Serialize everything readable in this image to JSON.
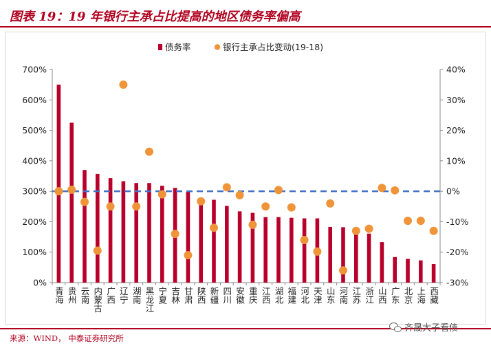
{
  "header": {
    "title": "图表 19：19 年银行主承占比提高的地区债务率偏高"
  },
  "footer": {
    "source": "来源：WIND，  中泰证券研究所",
    "watermark": "齐晟大子看债",
    "watermark_icon": "wechat-icon"
  },
  "chart_data": {
    "type": "bar",
    "title": "",
    "legend": {
      "placement": "top",
      "entries": [
        "债务率",
        "银行主承占比变动(19-18)"
      ]
    },
    "categories": [
      "青海",
      "贵州",
      "云南",
      "内蒙古",
      "广西",
      "辽宁",
      "湖南",
      "黑龙江",
      "宁夏",
      "吉林",
      "甘肃",
      "陕西",
      "新疆",
      "四川",
      "安徽",
      "重庆",
      "江西",
      "湖北",
      "福建",
      "河北",
      "天津",
      "山东",
      "河南",
      "江苏",
      "浙江",
      "山西",
      "广东",
      "北京",
      "上海",
      "西藏"
    ],
    "series": [
      {
        "name": "债务率",
        "kind": "bar",
        "axis": "left",
        "color": "#b8002a",
        "values": [
          650,
          525,
          370,
          357,
          343,
          333,
          327,
          327,
          318,
          311,
          298,
          268,
          272,
          252,
          234,
          229,
          215,
          215,
          213,
          211,
          211,
          183,
          182,
          163,
          161,
          133,
          84,
          78,
          73,
          61
        ]
      },
      {
        "name": "银行主承占比变动(19-18)",
        "kind": "scatter",
        "axis": "right",
        "color": "#f0943a",
        "values": [
          0.0,
          0.5,
          -3.5,
          -19.5,
          -5.0,
          35.0,
          -5.0,
          13.0,
          -1.0,
          -14.0,
          -21.0,
          -3.3,
          -12.0,
          1.3,
          -1.3,
          -11.0,
          -5.0,
          0.4,
          -5.3,
          -16.0,
          -19.8,
          -4.0,
          -26.0,
          -13.0,
          -12.3,
          1.1,
          0.3,
          -9.7,
          -9.7,
          -13.0
        ]
      }
    ],
    "yaxis_left": {
      "min": 0,
      "max": 700,
      "step": 100,
      "ticks": [
        "0%",
        "100%",
        "200%",
        "300%",
        "400%",
        "500%",
        "600%",
        "700%"
      ]
    },
    "yaxis_right": {
      "min": -30,
      "max": 40,
      "step": 10,
      "ticks": [
        "-30%",
        "-20%",
        "-10%",
        "0%",
        "10%",
        "20%",
        "30%",
        "40%"
      ]
    },
    "reference_line": {
      "axis": "right",
      "value": 0,
      "style": "dashed",
      "color": "#4472c4"
    },
    "grid": false
  }
}
